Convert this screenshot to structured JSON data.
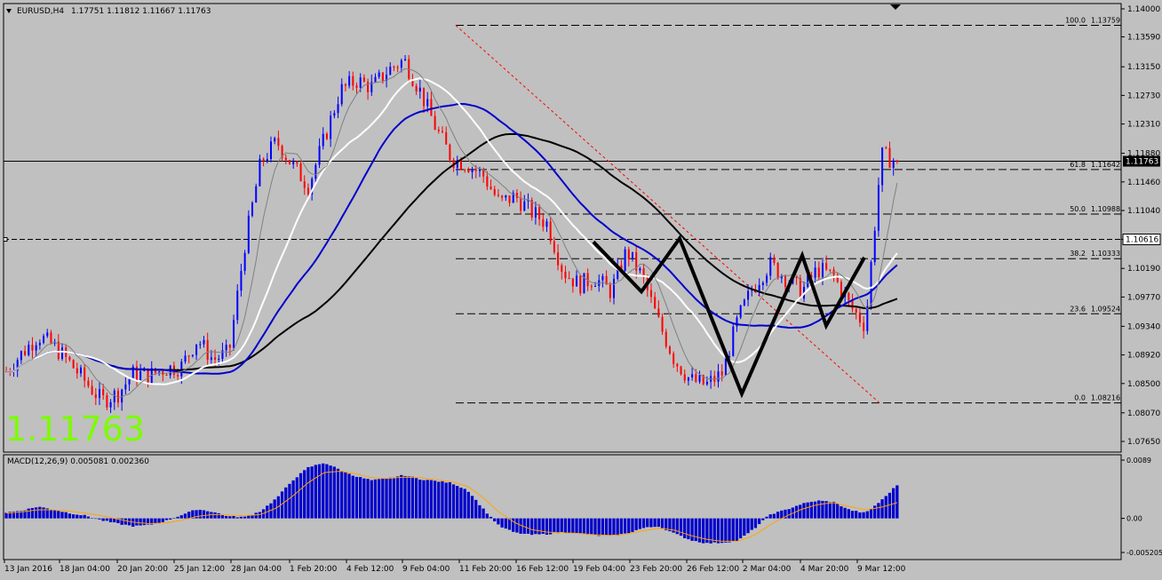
{
  "header": {
    "symbol": "EURUSD,H4",
    "quote": "1.17751 1.11812 1.11667 1.11763"
  },
  "big_price": "1.11763",
  "macd_label": "MACD(12,26,9) 0.005081 0.002360",
  "colors": {
    "background": "#c0c0c0",
    "bull_candle": "#0000ff",
    "bear_candle": "#ff0000",
    "ma_fast": "#808080",
    "ma_white": "#ffffff",
    "ma_blue": "#0000cc",
    "ma_black": "#000000",
    "macd_hist": "#0000cc",
    "macd_signal": "#ffa500",
    "big_price": "#7cfc00",
    "fib_line": "#000000",
    "fib_diagonal": "#ff0000"
  },
  "chart_data": [
    {
      "type": "candlestick",
      "symbol": "EURUSD",
      "timeframe": "H4",
      "x_labels": [
        "13 Jan 2016",
        "18 Jan 04:00",
        "20 Jan 20:00",
        "25 Jan 12:00",
        "28 Jan 04:00",
        "1 Feb 20:00",
        "4 Feb 12:00",
        "9 Feb 04:00",
        "11 Feb 20:00",
        "16 Feb 12:00",
        "19 Feb 04:00",
        "23 Feb 20:00",
        "26 Feb 12:00",
        "2 Mar 04:00",
        "4 Mar 20:00",
        "9 Mar 12:00"
      ],
      "y_ticks": [
        "1.14000",
        "1.13590",
        "1.13150",
        "1.12730",
        "1.12310",
        "1.11880",
        "1.11460",
        "1.11040",
        "1.10616",
        "1.10190",
        "1.09770",
        "1.09340",
        "1.08920",
        "1.08500",
        "1.08070",
        "1.07650"
      ],
      "ylim": [
        1.0765,
        1.14
      ],
      "current_price": "1.11763",
      "current_price_value": 1.11763,
      "key_level": "1.10616",
      "key_level_value": 1.10616,
      "price_path": [
        1.0868,
        1.0895,
        1.092,
        1.0905,
        1.088,
        1.0852,
        1.0825,
        1.0835,
        1.0865,
        1.0862,
        1.0872,
        1.0875,
        1.0915,
        1.0885,
        1.0895,
        1.1055,
        1.1175,
        1.1205,
        1.117,
        1.114,
        1.121,
        1.128,
        1.1295,
        1.1285,
        1.131,
        1.1325,
        1.128,
        1.1225,
        1.118,
        1.1172,
        1.1155,
        1.1115,
        1.1125,
        1.1102,
        1.1085,
        1.1015,
        1.0995,
        1.1005,
        1.0985,
        1.1045,
        1.1005,
        1.094,
        1.0885,
        1.0855,
        1.0848,
        1.0865,
        1.0945,
        1.0995,
        1.1025,
        1.1005,
        1.0985,
        1.1018,
        1.1008,
        1.0965,
        1.0935,
        1.1185,
        1.1176
      ],
      "fib_levels": [
        {
          "label": "100.0",
          "value": "1.13759",
          "price": 1.13759
        },
        {
          "label": "61.8",
          "value": "1.11642",
          "price": 1.11642
        },
        {
          "label": "50.0",
          "value": "1.10988",
          "price": 1.10988
        },
        {
          "label": "38.2",
          "value": "1.10333",
          "price": 1.10333
        },
        {
          "label": "23.6",
          "value": "1.09524",
          "price": 1.09524
        },
        {
          "label": "0.0",
          "value": "1.08216",
          "price": 1.08216
        }
      ],
      "fib_range": {
        "high": 1.13759,
        "low": 1.08216
      },
      "pattern_points": [
        1.1058,
        1.0985,
        1.1063,
        1.0835,
        1.1038,
        1.0935,
        1.1035
      ]
    },
    {
      "type": "bar",
      "title": "MACD(12,26,9)",
      "main": 0.005081,
      "signal": 0.00236,
      "y_ticks": [
        "0.0089",
        "0.00",
        "-0.005205"
      ],
      "ylim": [
        -0.005205,
        0.0089
      ],
      "histogram": [
        0.0009,
        0.0012,
        0.0018,
        0.0013,
        0.0008,
        0.0004,
        -0.0003,
        -0.0008,
        -0.0012,
        -0.001,
        -0.0004,
        0.0005,
        0.0014,
        0.001,
        0.0003,
        0.0002,
        0.0011,
        0.0031,
        0.0058,
        0.0078,
        0.0085,
        0.0074,
        0.0064,
        0.0058,
        0.0061,
        0.0066,
        0.006,
        0.0057,
        0.0054,
        0.0043,
        0.0014,
        -0.0012,
        -0.0022,
        -0.0025,
        -0.0024,
        -0.0021,
        -0.0023,
        -0.0026,
        -0.0027,
        -0.0023,
        -0.0015,
        -0.0012,
        -0.0023,
        -0.0033,
        -0.0038,
        -0.0037,
        -0.0034,
        -0.0016,
        0.0006,
        0.0013,
        0.0022,
        0.0027,
        0.0025,
        0.0013,
        0.0008,
        0.0027,
        0.0051
      ],
      "signal_path": [
        0.0008,
        0.001,
        0.0013,
        0.0013,
        0.0011,
        0.0008,
        0.0004,
        -0.0001,
        -0.0006,
        -0.0008,
        -0.0007,
        -0.0003,
        0.0003,
        0.0006,
        0.0005,
        0.0004,
        0.0006,
        0.0016,
        0.0034,
        0.0055,
        0.007,
        0.0072,
        0.0068,
        0.0062,
        0.0061,
        0.0063,
        0.0062,
        0.0059,
        0.0056,
        0.0049,
        0.0031,
        0.0009,
        -0.0007,
        -0.0017,
        -0.0021,
        -0.0022,
        -0.0023,
        -0.0025,
        -0.0026,
        -0.0024,
        -0.0019,
        -0.0015,
        -0.0018,
        -0.0026,
        -0.0032,
        -0.0035,
        -0.0035,
        -0.0026,
        -0.001,
        0.0003,
        0.0014,
        0.0021,
        0.0024,
        0.0018,
        0.0013,
        0.0017,
        0.0024
      ]
    }
  ]
}
